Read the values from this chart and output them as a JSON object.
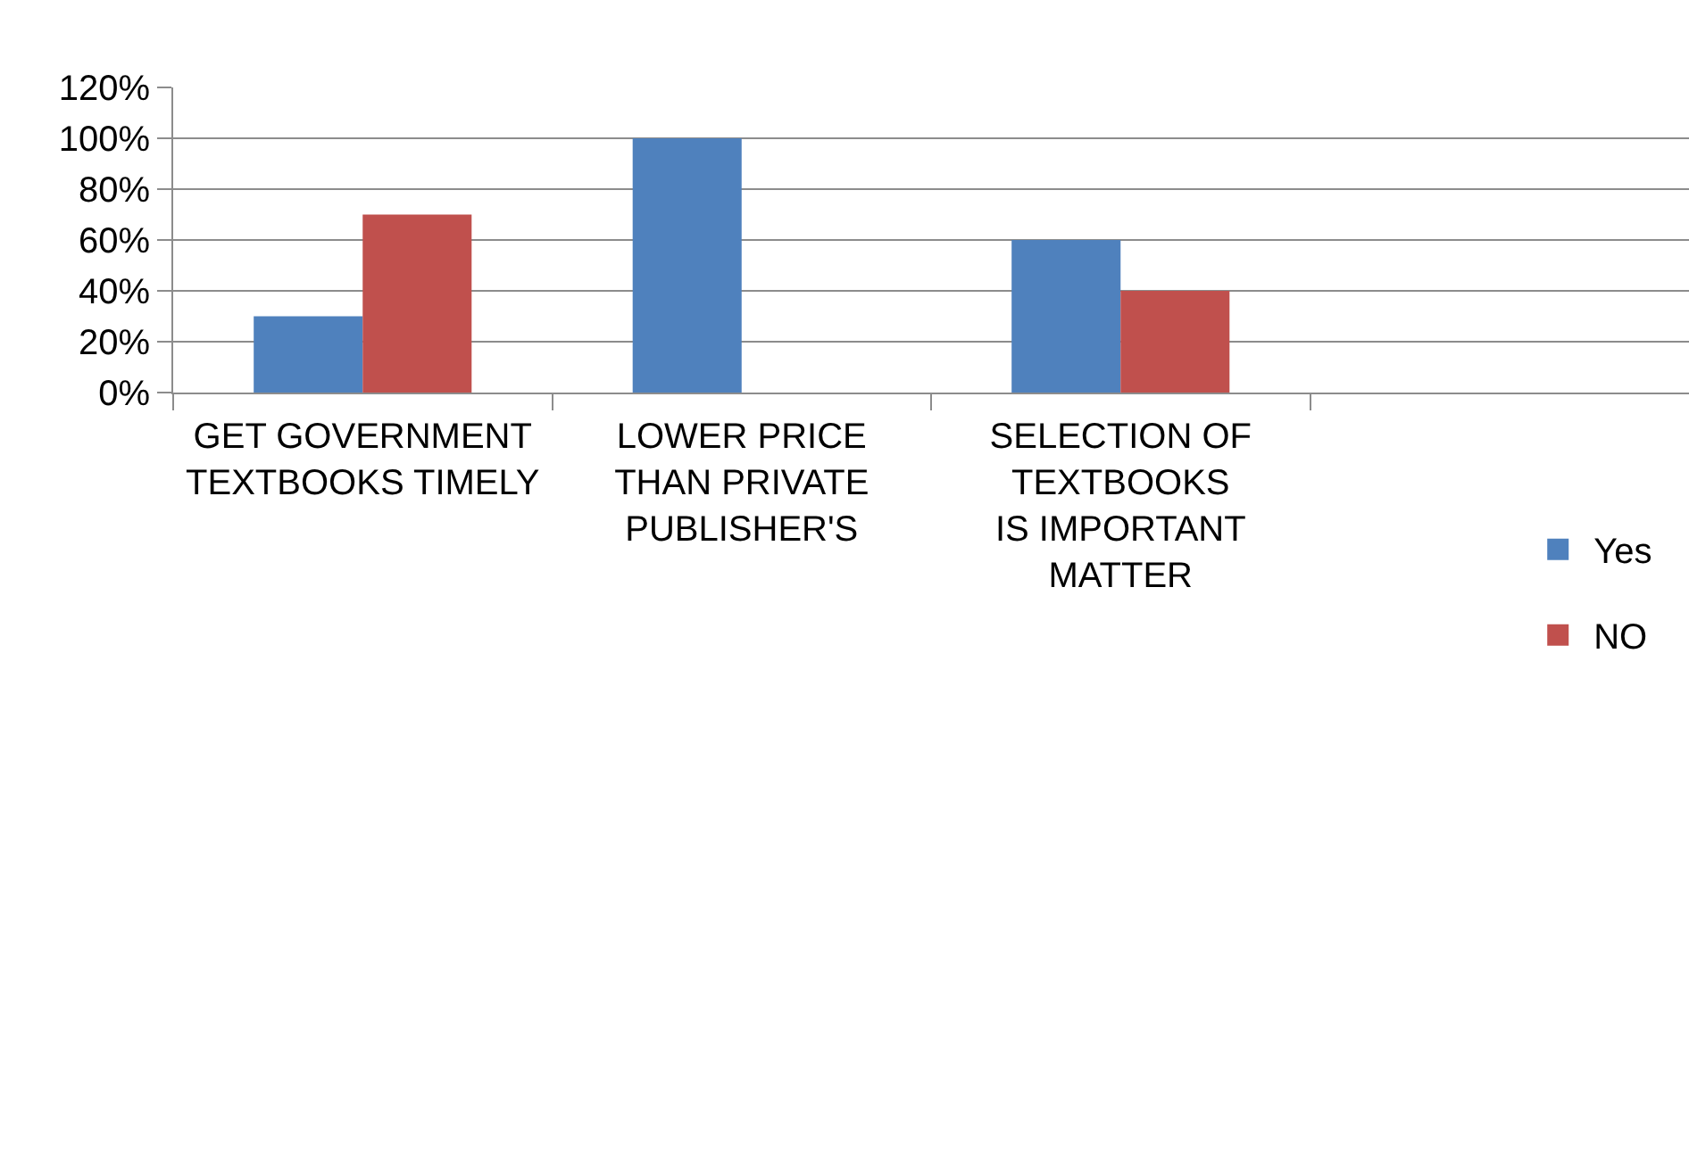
{
  "chart_data": {
    "type": "bar",
    "categories": [
      "GET GOVERNMENT TEXTBOOKS TIMELY",
      "LOWER PRICE THAN PRIVATE PUBLISHER'S",
      "SELECTION OF TEXTBOOKS IS IMPORTANT MATTER",
      null
    ],
    "series": [
      {
        "name": "Yes",
        "color": "#4f81bd",
        "values": [
          30,
          100,
          60,
          null
        ]
      },
      {
        "name": "NO",
        "color": "#c0504d",
        "values": [
          70,
          null,
          40,
          null
        ]
      }
    ],
    "ylim": [
      0,
      120
    ],
    "yticks": [
      {
        "value": 0,
        "label": "0%"
      },
      {
        "value": 20,
        "label": "20%"
      },
      {
        "value": 40,
        "label": "40%"
      },
      {
        "value": 60,
        "label": "60%"
      },
      {
        "value": 80,
        "label": "80%"
      },
      {
        "value": 100,
        "label": "100%"
      },
      {
        "value": 120,
        "label": "120%"
      }
    ],
    "grid": "y",
    "legend": "bottom right"
  }
}
